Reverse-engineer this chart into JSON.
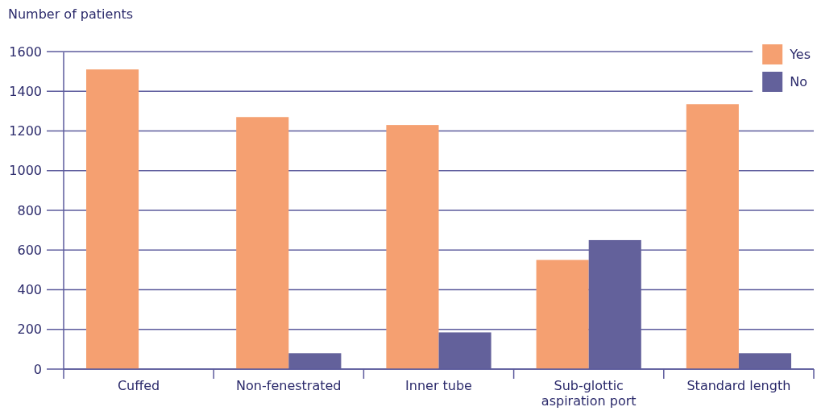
{
  "chart_data": {
    "type": "bar",
    "ylabel": "Number of patients",
    "categories": [
      "Cuffed",
      "Non-fenestrated",
      "Inner tube",
      "Sub-glottic aspiration port",
      "Standard length"
    ],
    "series": [
      {
        "name": "Yes",
        "color": "#f5a071",
        "values": [
          1510,
          1270,
          1230,
          550,
          1335
        ]
      },
      {
        "name": "No",
        "color": "#63619b",
        "values": [
          null,
          80,
          185,
          650,
          80
        ]
      }
    ],
    "ylim": [
      0,
      1600
    ],
    "yticks": [
      0,
      200,
      400,
      600,
      800,
      1000,
      1200,
      1400,
      1600
    ],
    "grid": "y",
    "legend": "top right"
  }
}
